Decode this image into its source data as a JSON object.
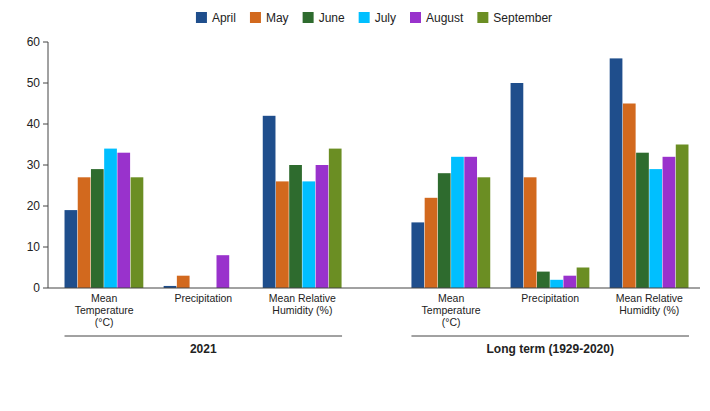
{
  "chart_data": {
    "type": "bar",
    "categories": [
      "Mean\nTemperature\n(°C)",
      "Precipitation",
      "Mean Relative\nHumidity (%)",
      "Mean\nTemperature\n(°C)",
      "Precipitation",
      "Mean Relative\nHumidity (%)"
    ],
    "series": [
      {
        "name": "April",
        "color": "#1F4E8C",
        "values": [
          19,
          0.5,
          42,
          16,
          50,
          56
        ]
      },
      {
        "name": "May",
        "color": "#D2691E",
        "values": [
          27,
          3,
          26,
          22,
          27,
          45
        ]
      },
      {
        "name": "June",
        "color": "#2E6B2E",
        "values": [
          29,
          0,
          30,
          28,
          4,
          33
        ]
      },
      {
        "name": "July",
        "color": "#00BFFF",
        "values": [
          34,
          0,
          26,
          32,
          2,
          29
        ]
      },
      {
        "name": "August",
        "color": "#9932CC",
        "values": [
          33,
          8,
          30,
          32,
          3,
          32
        ]
      },
      {
        "name": "September",
        "color": "#6B8E23",
        "values": [
          27,
          0,
          34,
          27,
          5,
          35
        ]
      }
    ],
    "annotations": [
      "2021",
      "Long term (1929-2020)"
    ],
    "ylim": [
      0,
      60
    ],
    "yticks": [
      0,
      10,
      20,
      30,
      40,
      50,
      60
    ],
    "grid": false,
    "legend": "top"
  }
}
